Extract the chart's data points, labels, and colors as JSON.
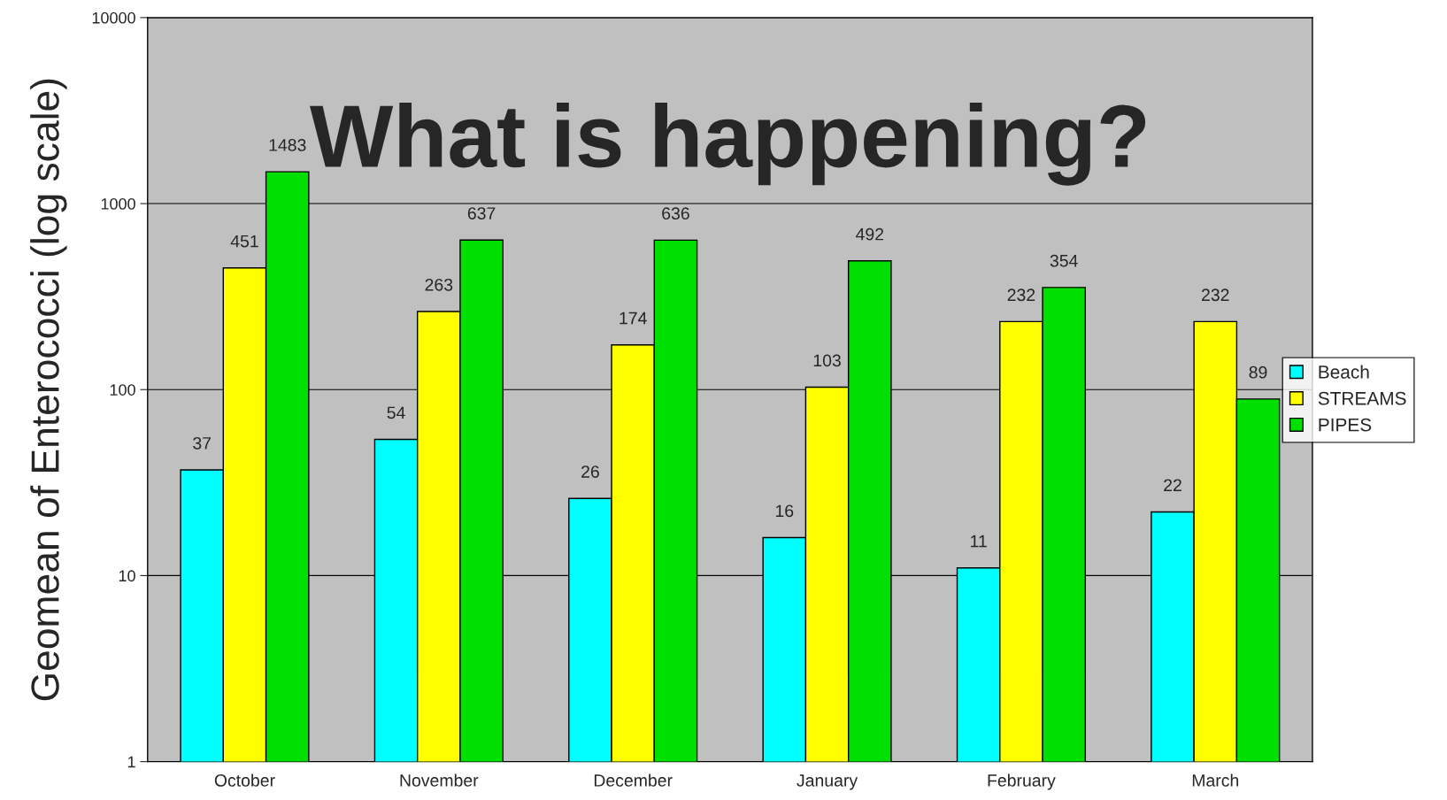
{
  "chart_data": {
    "type": "bar",
    "title": "What is happening?",
    "ylabel": "Geomean of Enterococci (log scale)",
    "categories": [
      "October",
      "November",
      "December",
      "January",
      "February",
      "March"
    ],
    "series": [
      {
        "name": "Beach",
        "color": "#00ffff",
        "values": [
          37,
          54,
          26,
          16,
          11,
          22
        ]
      },
      {
        "name": "STREAMS",
        "color": "#ffff00",
        "values": [
          451,
          263,
          174,
          103,
          232,
          232
        ]
      },
      {
        "name": "PIPES",
        "color": "#00e000",
        "values": [
          1483,
          637,
          636,
          492,
          354,
          89
        ]
      }
    ],
    "log": true,
    "ylim": [
      1,
      10000
    ],
    "yticks": [
      1,
      10,
      100,
      1000,
      10000
    ],
    "grid": "y",
    "legend": "right",
    "data_labels": true
  }
}
